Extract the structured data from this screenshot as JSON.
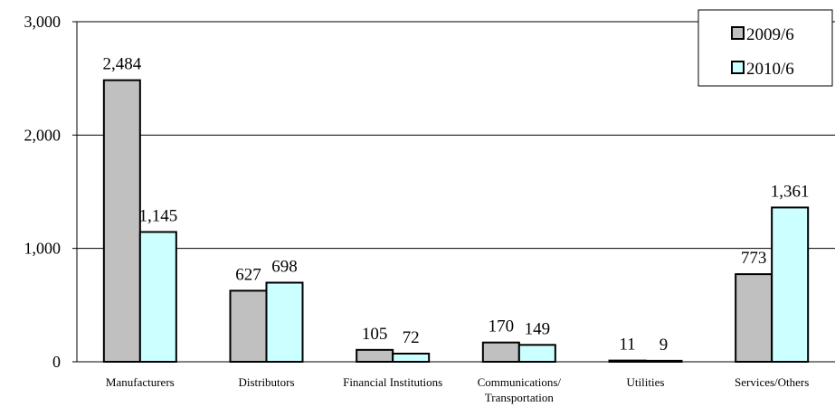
{
  "chart_data": {
    "type": "bar",
    "categories": [
      "Manufacturers",
      "Distributors",
      "Financial Institutions",
      "Communications/ Transportation",
      "Utilities",
      "Services/Others"
    ],
    "category_lines": [
      [
        "Manufacturers"
      ],
      [
        "Distributors"
      ],
      [
        "Financial Institutions"
      ],
      [
        "Communications/",
        "Transportation"
      ],
      [
        "Utilities"
      ],
      [
        "Services/Others"
      ]
    ],
    "series": [
      {
        "name": "2009/6",
        "values": [
          2484,
          627,
          105,
          170,
          11,
          773
        ],
        "labels": [
          "2,484",
          "627",
          "105",
          "170",
          "11",
          "773"
        ],
        "color": "#c0c0c0"
      },
      {
        "name": "2010/6",
        "values": [
          1145,
          698,
          72,
          149,
          9,
          1361
        ],
        "labels": [
          "1,145",
          "698",
          "72",
          "149",
          "9",
          "1,361"
        ],
        "color": "#ccffff"
      }
    ],
    "y_ticks": [
      0,
      1000,
      2000,
      3000
    ],
    "y_tick_labels": [
      "0",
      "1,000",
      "2,000",
      "3,000"
    ],
    "ylim": [
      0,
      3000
    ],
    "grid": true,
    "legend_position": "top-right",
    "title": "",
    "xlabel": "",
    "ylabel": ""
  }
}
